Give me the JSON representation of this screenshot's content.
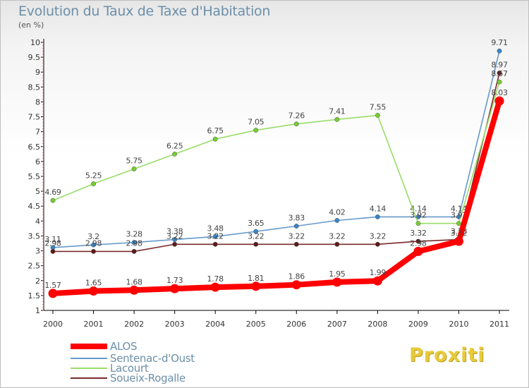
{
  "chart_data": {
    "type": "line",
    "title": "Evolution du Taux de Taxe d'Habitation",
    "unit_label": "(en %)",
    "categories": [
      "2000",
      "2001",
      "2002",
      "2003",
      "2004",
      "2005",
      "2006",
      "2007",
      "2008",
      "2009",
      "2010",
      "2011"
    ],
    "ylim": [
      1,
      10
    ],
    "yticks": [
      "1",
      "1.5",
      "2",
      "2.5",
      "3",
      "3.5",
      "4",
      "4.5",
      "5",
      "5.5",
      "6",
      "6.5",
      "7",
      "7.5",
      "8",
      "8.5",
      "9",
      "9.5",
      "10"
    ],
    "grid": false,
    "legend_position": "bottom-left",
    "series": [
      {
        "name": "Sentenac-d'Oust",
        "color": "#6699cc",
        "point_color": "#3a85c6",
        "values": [
          3.11,
          3.2,
          3.28,
          3.38,
          3.48,
          3.65,
          3.83,
          4.02,
          4.14,
          4.14,
          4.14,
          9.71
        ],
        "labels": [
          "3.11",
          "3.2",
          "3.28",
          "3.38",
          "3.48",
          "3.65",
          "3.83",
          "4.02",
          "4.14",
          "4.14",
          "4.14",
          "9.71"
        ]
      },
      {
        "name": "Soueix-Rogalle",
        "color": "#7a2a2a",
        "point_color": "#5c1a1a",
        "values": [
          2.98,
          2.98,
          2.98,
          3.22,
          3.22,
          3.22,
          3.22,
          3.22,
          3.22,
          3.32,
          3.38,
          8.97
        ],
        "labels": [
          "2.98",
          "2.98",
          "2.98",
          "3.22",
          "3.22",
          "3.22",
          "3.22",
          "3.22",
          "3.22",
          "3.32",
          "3.38",
          "8.97"
        ]
      },
      {
        "name": "Lacourt",
        "color": "#99dd66",
        "point_color": "#77cc33",
        "values": [
          4.69,
          5.25,
          5.75,
          6.25,
          6.75,
          7.05,
          7.26,
          7.41,
          7.55,
          3.92,
          3.92,
          8.67
        ],
        "labels": [
          "4.69",
          "5.25",
          "5.75",
          "6.25",
          "6.75",
          "7.05",
          "7.26",
          "7.41",
          "7.55",
          "3.92",
          "3.92",
          "8.67"
        ]
      },
      {
        "name": "ALOS",
        "color": "#ff0000",
        "point_color": "#ff0000",
        "values": [
          1.57,
          1.65,
          1.68,
          1.73,
          1.78,
          1.81,
          1.86,
          1.95,
          1.99,
          2.98,
          3.32,
          8.03
        ],
        "labels": [
          "1.57",
          "1.65",
          "1.68",
          "1.73",
          "1.78",
          "1.81",
          "1.86",
          "1.95",
          "1.99",
          "2.98",
          "3.32",
          "8.03"
        ]
      }
    ],
    "legend": [
      {
        "name": "ALOS",
        "color": "#ff0000",
        "weight": "thick"
      },
      {
        "name": "Sentenac-d'Oust",
        "color": "#6699cc",
        "weight": "thin"
      },
      {
        "name": "Lacourt",
        "color": "#99dd66",
        "weight": "thin"
      },
      {
        "name": "Soueix-Rogalle",
        "color": "#7a2a2a",
        "weight": "thin"
      }
    ]
  },
  "brand": "Proxiti"
}
